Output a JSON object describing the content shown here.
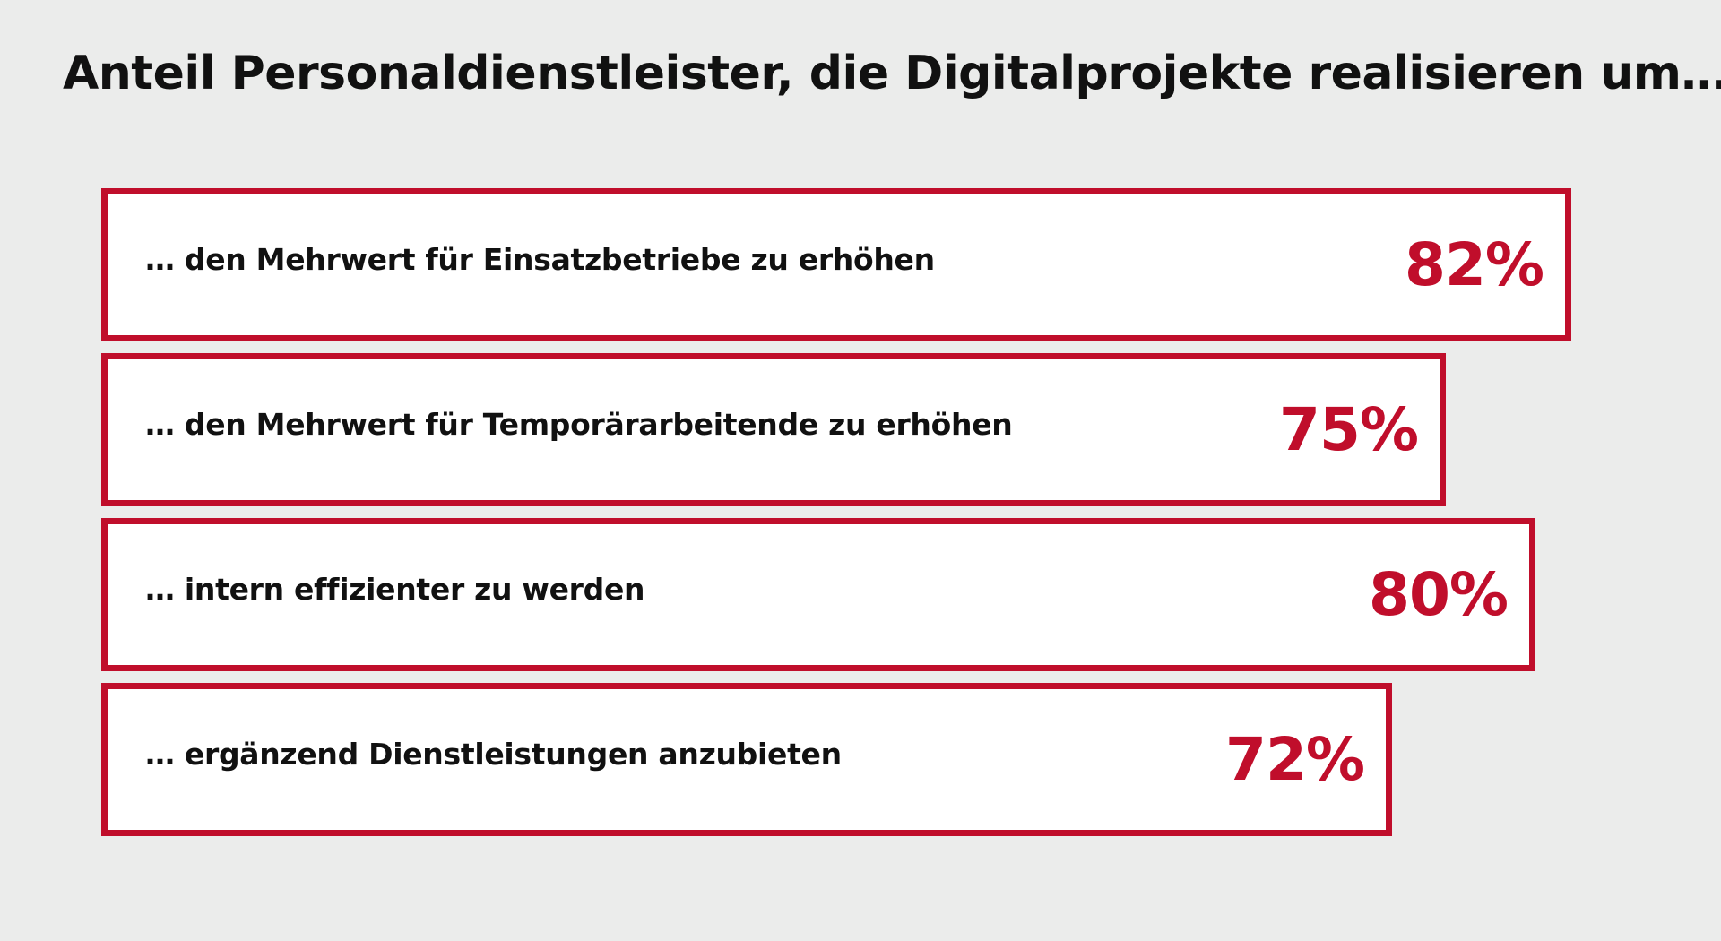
{
  "chart_data": {
    "type": "bar",
    "orientation": "horizontal",
    "title": "Anteil Personaldienstleister, die Digitalprojekte realisieren um…",
    "categories": [
      "… den Mehrwert für Einsatzbetriebe zu erhöhen",
      "… den Mehrwert für Temporärarbeitende zu erhöhen",
      "… intern effizienter zu werden",
      "… ergänzend Dienstleistungen anzubieten"
    ],
    "values": [
      82,
      75,
      80,
      72
    ],
    "value_labels": [
      "82%",
      "75%",
      "80%",
      "72%"
    ],
    "unit": "%",
    "colors": {
      "border": "#c00e2b",
      "value_text": "#c00e2b",
      "bar_fill": "#ffffff",
      "background": "#ebeceb",
      "label_text": "#111111"
    }
  }
}
